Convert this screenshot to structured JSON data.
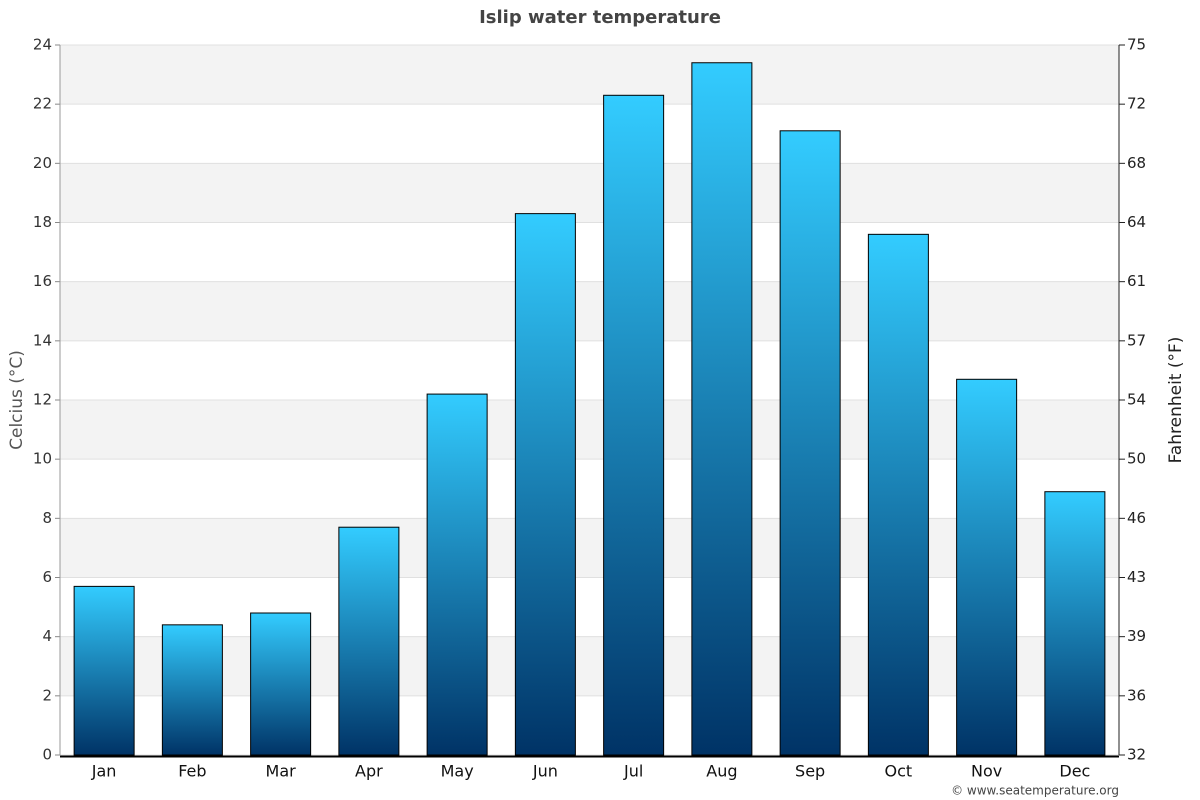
{
  "chart_data": {
    "type": "bar",
    "title": "Islip water temperature",
    "categories": [
      "Jan",
      "Feb",
      "Mar",
      "Apr",
      "May",
      "Jun",
      "Jul",
      "Aug",
      "Sep",
      "Oct",
      "Nov",
      "Dec"
    ],
    "series": [
      {
        "name": "Celcius (°C)",
        "color": "#33ccff",
        "values": [
          5.7,
          4.4,
          4.8,
          7.7,
          12.2,
          18.3,
          22.3,
          23.4,
          21.1,
          17.6,
          12.7,
          8.9
        ]
      }
    ],
    "ylabel": "Celcius (°C)",
    "y2label": "Fahrenheit (°F)",
    "ylim": [
      0,
      24
    ],
    "yticks": [
      0,
      2,
      4,
      6,
      8,
      10,
      12,
      14,
      16,
      18,
      20,
      22,
      24
    ],
    "y2lim": [
      32,
      75.2
    ],
    "y2ticks": [
      32,
      {
        "value": 35.6,
        "label": "36"
      },
      {
        "value": 39.2,
        "label": "39"
      },
      {
        "value": 42.8,
        "label": "43"
      },
      {
        "value": 46.4,
        "label": "46"
      },
      50,
      {
        "value": 53.6,
        "label": "54"
      },
      {
        "value": 57.2,
        "label": "57"
      },
      {
        "value": 60.8,
        "label": "61"
      },
      {
        "value": 64.4,
        "label": "64"
      },
      68,
      {
        "value": 71.6,
        "label": "72"
      },
      {
        "value": 75.2,
        "label": "75"
      }
    ],
    "grid": true,
    "credit": "© www.seatemperature.org"
  }
}
